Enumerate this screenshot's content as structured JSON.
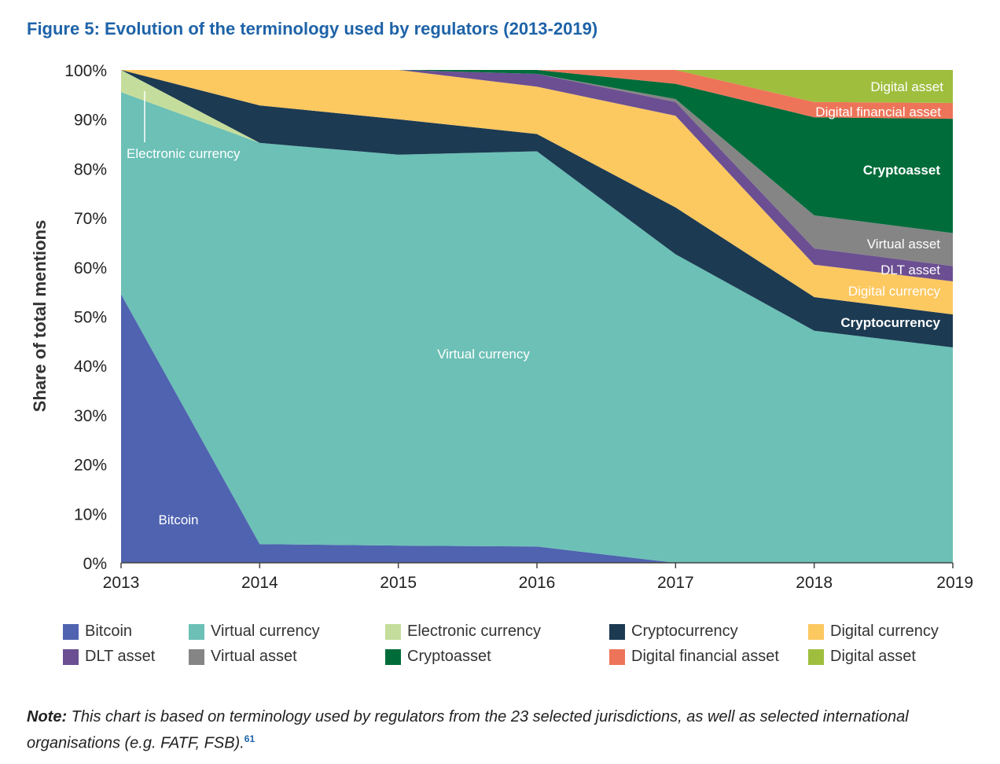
{
  "title": "Figure 5: Evolution of the terminology used by regulators (2013-2019)",
  "chart_data": {
    "type": "area",
    "stacked": true,
    "x": [
      "2013",
      "2014",
      "2015",
      "2016",
      "2017",
      "2018",
      "2019"
    ],
    "ylabel": "Share of total mentions",
    "ylim": [
      0,
      100
    ],
    "yticks": [
      "0%",
      "10%",
      "20%",
      "30%",
      "40%",
      "50%",
      "60%",
      "70%",
      "80%",
      "90%",
      "100%"
    ],
    "series": [
      {
        "name": "Bitcoin",
        "color": "#4f63b0",
        "values": [
          54.5,
          3.8,
          3.5,
          3.3,
          0,
          0,
          0
        ]
      },
      {
        "name": "Virtual currency",
        "color": "#6cc0b6",
        "values": [
          41,
          81.4,
          79.3,
          80.2,
          62.6,
          47.1,
          43.7
        ]
      },
      {
        "name": "Electronic currency",
        "color": "#c5dd9c",
        "values": [
          4.5,
          0,
          0,
          0,
          0,
          0,
          0
        ]
      },
      {
        "name": "Cryptocurrency",
        "color": "#1c3a52",
        "values": [
          0,
          7.6,
          7.2,
          3.5,
          9.5,
          6.8,
          6.7
        ]
      },
      {
        "name": "Digital currency",
        "color": "#fcc860",
        "values": [
          0,
          7.2,
          10,
          9.6,
          18.6,
          6.6,
          6.7
        ]
      },
      {
        "name": "DLT asset",
        "color": "#6b4f92",
        "values": [
          0,
          0,
          0,
          2.6,
          2.8,
          3.3,
          3.1
        ]
      },
      {
        "name": "Virtual asset",
        "color": "#858585",
        "values": [
          0,
          0,
          0,
          0,
          0.6,
          6.7,
          6.7
        ]
      },
      {
        "name": "Cryptoasset",
        "color": "#006c3a",
        "values": [
          0,
          0,
          0,
          0.8,
          3.1,
          19.9,
          23.2
        ]
      },
      {
        "name": "Digital financial asset",
        "color": "#ee7459",
        "values": [
          0,
          0,
          0,
          0,
          2.8,
          3.1,
          3.2
        ]
      },
      {
        "name": "Digital asset",
        "color": "#9fbe3e",
        "values": [
          0,
          0,
          0,
          0,
          0,
          6.5,
          6.7
        ]
      }
    ]
  },
  "area_labels": {
    "bitcoin": "Bitcoin",
    "virtual_currency": "Virtual currency",
    "electronic_currency": "Electronic currency",
    "cryptocurrency": "Cryptocurrency",
    "digital_currency": "Digital currency",
    "dlt_asset": "DLT asset",
    "virtual_asset": "Virtual asset",
    "cryptoasset": "Cryptoasset",
    "digital_financial_asset": "Digital financial asset",
    "digital_asset": "Digital asset"
  },
  "note": {
    "label": "Note:",
    "text": " This chart is based on terminology used by regulators from the 23 selected jurisdictions, as well as selected international organisations (e.g. FATF, FSB).",
    "ref": "61"
  }
}
